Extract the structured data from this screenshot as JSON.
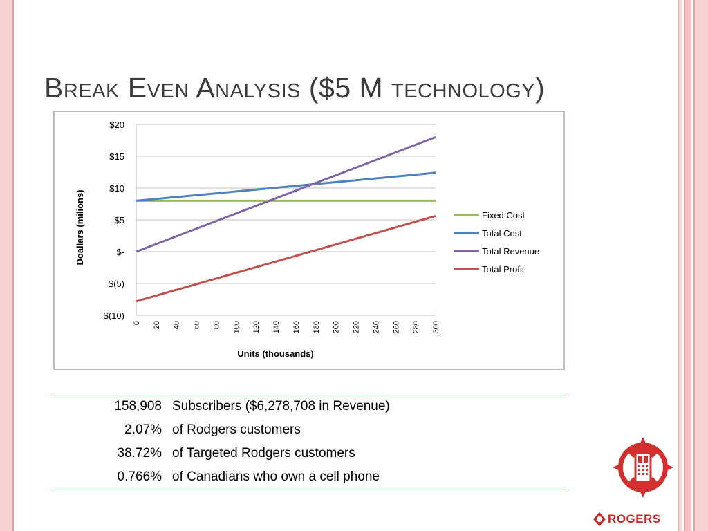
{
  "slide": {
    "title": "Break Even Analysis ($5 M technology)"
  },
  "chart_data": {
    "type": "line",
    "ylabel": "Doallars (milions)",
    "xlabel": "Units (thousands)",
    "x": [
      0,
      300
    ],
    "xticks": [
      "0",
      "20",
      "40",
      "60",
      "80",
      "100",
      "120",
      "140",
      "160",
      "180",
      "200",
      "220",
      "240",
      "260",
      "280",
      "300"
    ],
    "xtick_values": [
      0,
      20,
      40,
      60,
      80,
      100,
      120,
      140,
      160,
      180,
      200,
      220,
      240,
      260,
      280,
      300
    ],
    "yticks": [
      "$(10)",
      "$(5)",
      "$-",
      "$5",
      "$10",
      "$15",
      "$20"
    ],
    "ytick_values": [
      -10,
      -5,
      0,
      5,
      10,
      15,
      20
    ],
    "ylim": [
      -10,
      20
    ],
    "xlim": [
      0,
      300
    ],
    "grid": "horizontal",
    "legend_position": "right",
    "series": [
      {
        "name": "Fixed Cost",
        "color": "#9bbb59",
        "values": [
          8,
          8
        ]
      },
      {
        "name": "Total Cost",
        "color": "#4f81bd",
        "values": [
          8,
          12.4
        ]
      },
      {
        "name": "Total Revenue",
        "color": "#8064a2",
        "values": [
          0,
          18
        ]
      },
      {
        "name": "Total Profit",
        "color": "#c0504d",
        "values": [
          -7.8,
          5.6
        ]
      }
    ]
  },
  "stats": [
    {
      "value": "158,908",
      "label": "Subscribers ($6,278,708 in Revenue)"
    },
    {
      "value": "2.07%",
      "label": "of Rodgers customers"
    },
    {
      "value": "38.72%",
      "label": "of Targeted Rodgers customers"
    },
    {
      "value": "0.766%",
      "label": "of Canadians who own a cell phone"
    }
  ],
  "brand": {
    "name": "ROGERS",
    "color": "#c62828",
    "icon": "rogers-phone-logo-icon"
  }
}
